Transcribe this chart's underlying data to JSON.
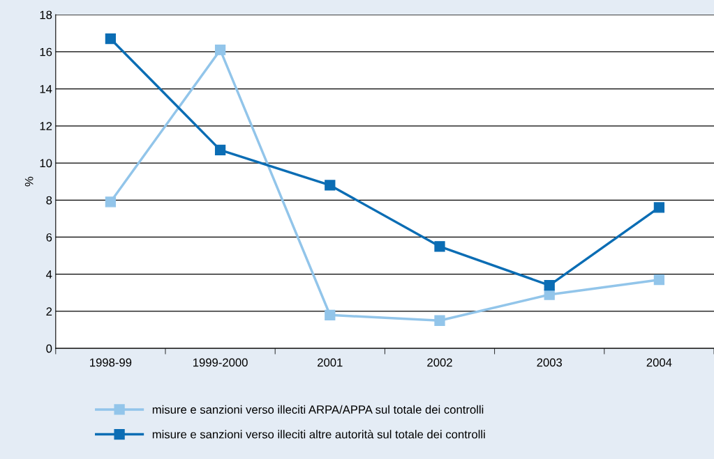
{
  "chart_data": {
    "type": "line",
    "ylabel": "%",
    "categories": [
      "1998-99",
      "1999-2000",
      "2001",
      "2002",
      "2003",
      "2004"
    ],
    "series": [
      {
        "name": "misure e sanzioni verso illeciti ARPA/APPA sul totale dei controlli",
        "color": "#92c5ea",
        "values": [
          7.9,
          16.1,
          1.8,
          1.5,
          2.9,
          3.7
        ]
      },
      {
        "name": "misure e sanzioni verso illeciti altre autorità sul totale dei controlli",
        "color": "#0b6db4",
        "values": [
          16.7,
          10.7,
          8.8,
          5.5,
          3.4,
          7.6
        ]
      }
    ],
    "ylim": [
      0,
      18
    ],
    "yticks": [
      0,
      2,
      4,
      6,
      8,
      10,
      12,
      14,
      16,
      18
    ],
    "grid": "y",
    "legend": "bottom",
    "marker": "square",
    "line_style": "solid"
  }
}
